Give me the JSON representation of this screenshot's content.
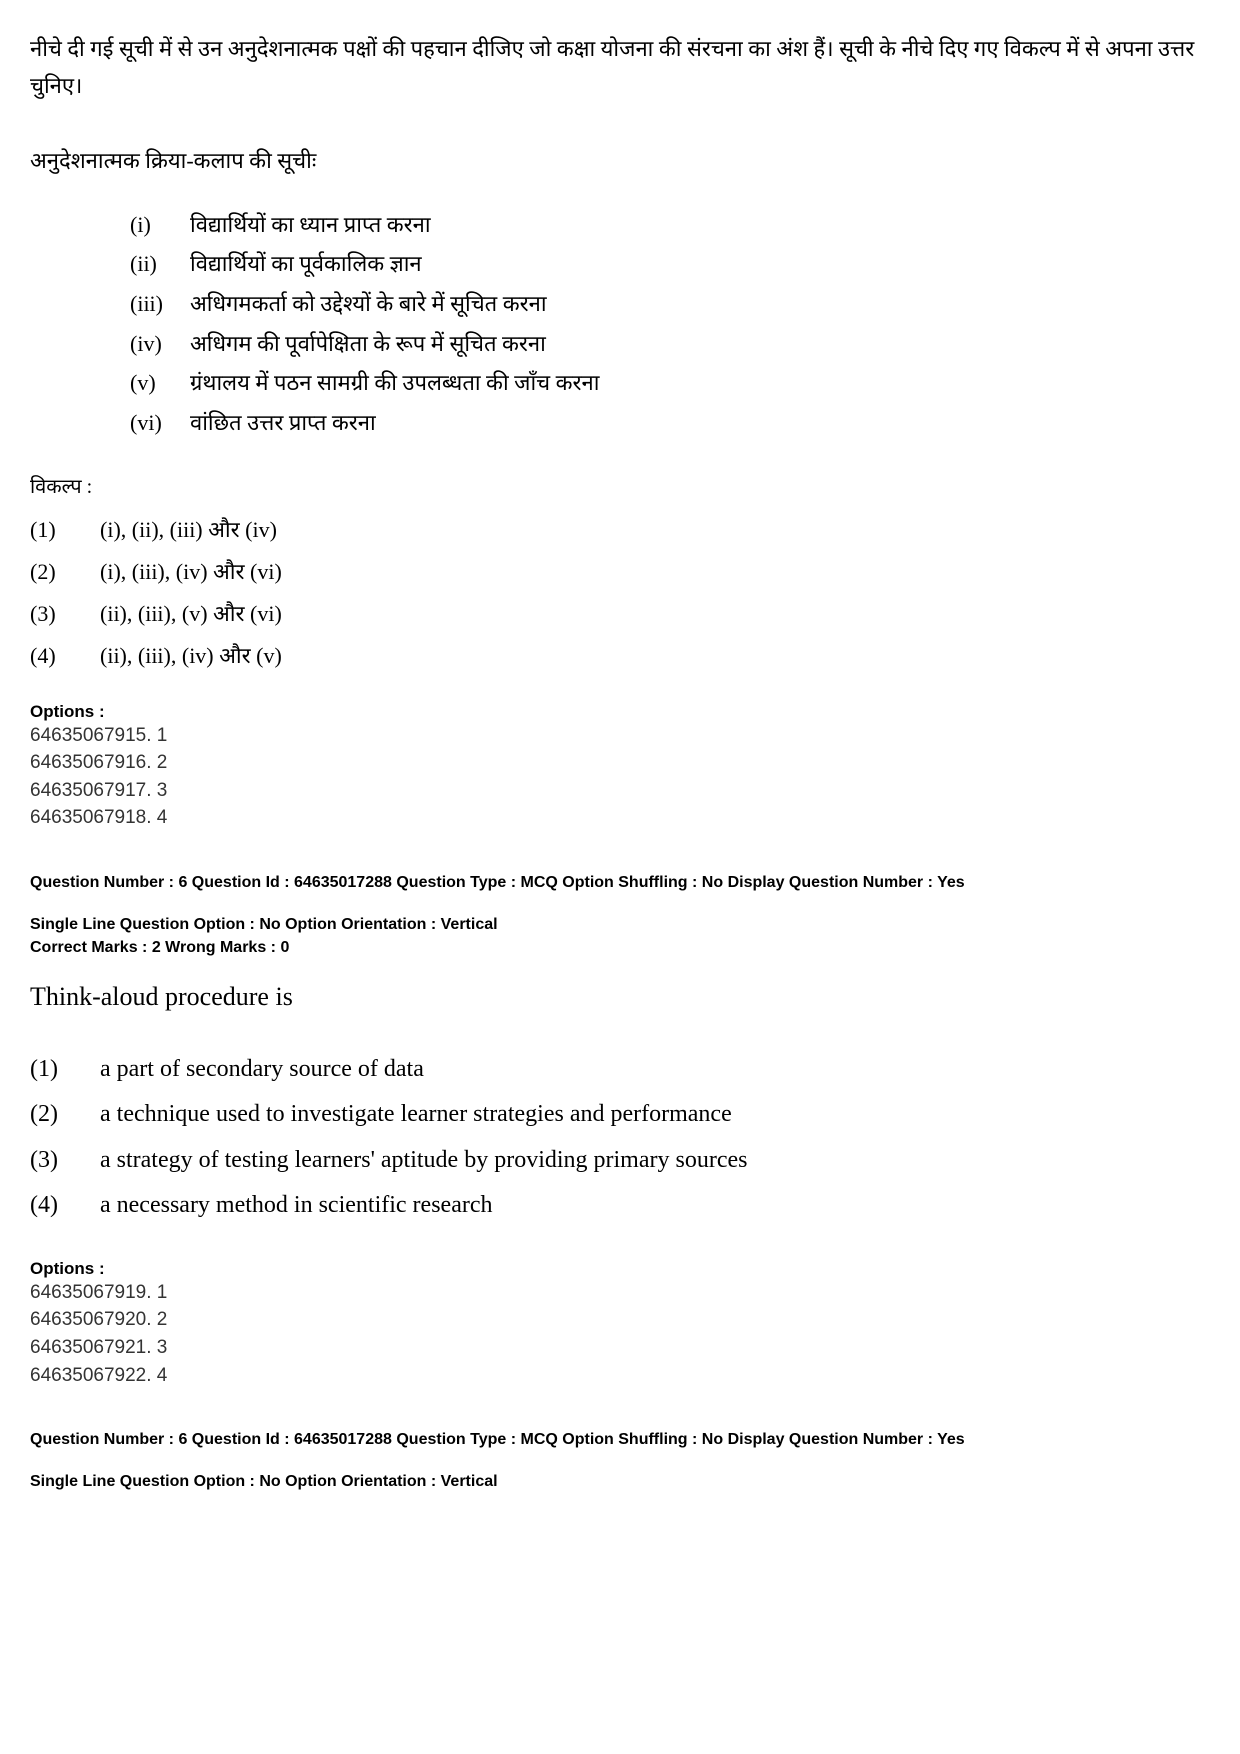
{
  "q1": {
    "intro": "नीचे दी गई सूची में से उन अनुदेशनात्मक पक्षों की पहचान दीजिए जो कक्षा योजना की संरचना का अंश हैं। सूची के नीचे दिए गए विकल्प में से अपना उत्तर चुनिए।",
    "heading": "अनुदेशनात्मक क्रिया-कलाप की सूचीः",
    "roman": [
      {
        "num": "(i)",
        "text": "विद्यार्थियों का ध्यान प्राप्त करना"
      },
      {
        "num": "(ii)",
        "text": "विद्यार्थियों का पूर्वकालिक ज्ञान"
      },
      {
        "num": "(iii)",
        "text": "अधिगमकर्ता को उद्देश्यों के बारे में सूचित करना"
      },
      {
        "num": "(iv)",
        "text": "अधिगम की पूर्वापेक्षिता के रूप में सूचित करना"
      },
      {
        "num": "(v)",
        "text": "ग्रंथालय में पठन सामग्री की उपलब्धता की जाँच करना"
      },
      {
        "num": "(vi)",
        "text": "वांछित उत्तर प्राप्त करना"
      }
    ],
    "vikalp_label": "विकल्प :",
    "options": [
      {
        "num": "(1)",
        "text": "(i), (ii), (iii) और (iv)"
      },
      {
        "num": "(2)",
        "text": "(i), (iii), (iv) और (vi)"
      },
      {
        "num": "(3)",
        "text": "(ii), (iii), (v) और (vi)"
      },
      {
        "num": "(4)",
        "text": "(ii), (iii), (iv) और (v)"
      }
    ],
    "options_header": "Options :",
    "option_codes": [
      "64635067915. 1",
      "64635067916. 2",
      "64635067917. 3",
      "64635067918. 4"
    ]
  },
  "meta": {
    "line1": "Question Number : 6  Question Id : 64635017288  Question Type : MCQ  Option Shuffling : No  Display Question Number : Yes",
    "line2": "Single Line Question Option : No  Option Orientation : Vertical",
    "marks": "Correct Marks : 2  Wrong Marks : 0"
  },
  "q2": {
    "stem": "Think-aloud procedure is",
    "options": [
      {
        "num": "(1)",
        "text": "a part of secondary source of data"
      },
      {
        "num": "(2)",
        "text": "a technique used to investigate learner strategies and performance"
      },
      {
        "num": "(3)",
        "text": "a strategy of testing learners' aptitude by providing primary sources"
      },
      {
        "num": "(4)",
        "text": "a necessary method in scientific research"
      }
    ],
    "options_header": "Options :",
    "option_codes": [
      "64635067919. 1",
      "64635067920. 2",
      "64635067921. 3",
      "64635067922. 4"
    ]
  },
  "meta2": {
    "line1": "Question Number : 6  Question Id : 64635017288  Question Type : MCQ  Option Shuffling : No  Display Question Number : Yes",
    "line2": "Single Line Question Option : No  Option Orientation : Vertical"
  }
}
